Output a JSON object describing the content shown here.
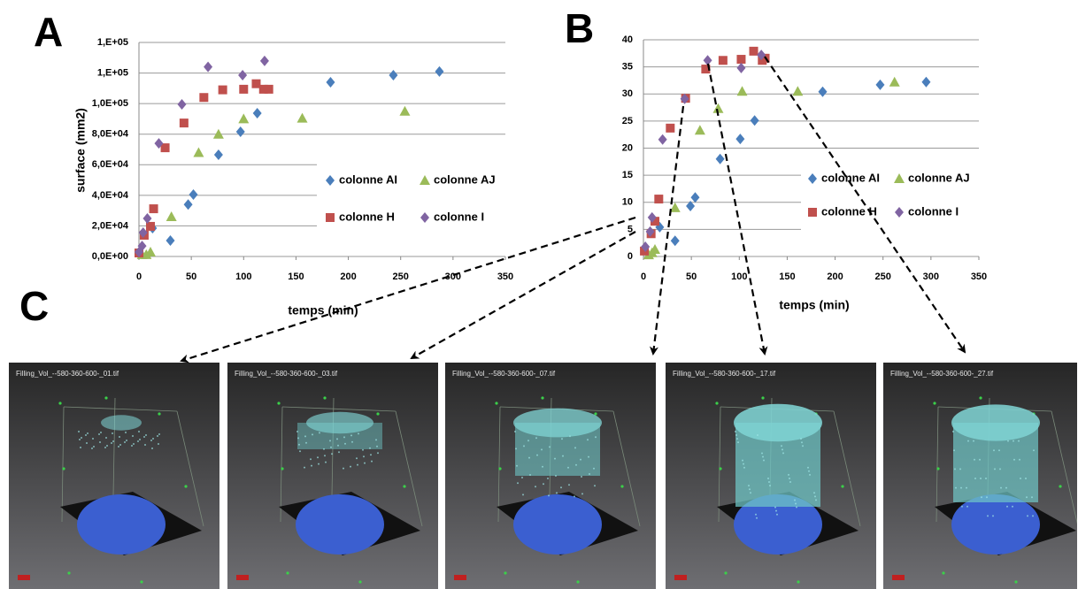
{
  "chart_data": [
    {
      "type": "scatter",
      "panel_label": "A",
      "ylabel": "surface (mm2)",
      "xlabel": "temps (min)",
      "xlim": [
        0,
        350
      ],
      "xticks": [
        0,
        50,
        100,
        150,
        200,
        250,
        300,
        350
      ],
      "ylim": [
        0,
        140000
      ],
      "yticks": [
        {
          "value": 0,
          "label": "0,0E+00"
        },
        {
          "value": 20000,
          "label": "2,0E+04"
        },
        {
          "value": 40000,
          "label": "4,0E+04"
        },
        {
          "value": 60000,
          "label": "6,0E+04"
        },
        {
          "value": 80000,
          "label": "8,0E+04"
        },
        {
          "value": 100000,
          "label": "1,0E+05"
        },
        {
          "value": 120000,
          "label": "1,E+05"
        },
        {
          "value": 140000,
          "label": "1,E+05"
        }
      ],
      "grid": true,
      "series": [
        {
          "name": "colonne AI",
          "color": "#4a7ebb",
          "marker": "diamond",
          "x": [
            13,
            30,
            47,
            52,
            76,
            97,
            113,
            183,
            243,
            287
          ],
          "values": [
            18500,
            10400,
            34000,
            40500,
            66500,
            81600,
            93700,
            114000,
            118600,
            121000
          ]
        },
        {
          "name": "colonne AJ",
          "color": "#9bbb59",
          "marker": "triangle",
          "x": [
            3,
            7,
            11,
            31,
            57,
            76,
            100,
            156,
            254
          ],
          "values": [
            1200,
            1200,
            2900,
            26000,
            68000,
            80000,
            90000,
            90500,
            95000
          ]
        },
        {
          "name": "colonne H",
          "color": "#c0504d",
          "marker": "square",
          "x": [
            0,
            5,
            11,
            14,
            25,
            43,
            62,
            80,
            100,
            112,
            119,
            124
          ],
          "values": [
            2300,
            13900,
            19700,
            31200,
            71100,
            87300,
            104000,
            109000,
            109400,
            113000,
            109400,
            109400
          ]
        },
        {
          "name": "colonne I",
          "color": "#8064a2",
          "marker": "diamond",
          "x": [
            0,
            3,
            4,
            8,
            19,
            41,
            66,
            99,
            120
          ],
          "values": [
            2900,
            6900,
            15600,
            24900,
            74000,
            99500,
            124000,
            118600,
            127900
          ]
        }
      ]
    },
    {
      "type": "scatter",
      "panel_label": "B",
      "xlabel": "temps (min)",
      "xlim": [
        0,
        350
      ],
      "xticks": [
        0,
        50,
        100,
        150,
        200,
        250,
        300,
        350
      ],
      "ylim": [
        0,
        40
      ],
      "yticks": [
        0,
        5,
        10,
        15,
        20,
        25,
        30,
        35,
        40
      ],
      "grid": true,
      "series": [
        {
          "name": "colonne AI",
          "color": "#4a7ebb",
          "marker": "diamond",
          "x": [
            17,
            33,
            49,
            54,
            80,
            101,
            116,
            187,
            247,
            295
          ],
          "values": [
            5.4,
            2.9,
            9.3,
            10.9,
            18,
            21.7,
            25.1,
            30.4,
            31.7,
            32.2
          ]
        },
        {
          "name": "colonne AJ",
          "color": "#9bbb59",
          "marker": "triangle",
          "x": [
            5.5,
            9,
            12,
            33,
            59,
            78,
            103,
            161,
            262
          ],
          "values": [
            0.3,
            0.7,
            1.3,
            9,
            23.3,
            27.3,
            30.5,
            30.5,
            32.2
          ]
        },
        {
          "name": "colonne H",
          "color": "#c0504d",
          "marker": "square",
          "x": [
            1,
            8,
            12,
            16,
            28,
            44,
            65,
            83,
            102,
            115,
            124,
            127
          ],
          "values": [
            1,
            4.2,
            6.5,
            10.6,
            23.7,
            29.2,
            34.6,
            36.2,
            36.4,
            37.9,
            36.2,
            36.6
          ]
        },
        {
          "name": "colonne I",
          "color": "#8064a2",
          "marker": "diamond",
          "x": [
            2,
            7,
            9,
            20,
            43,
            67,
            102,
            123
          ],
          "values": [
            1.8,
            4.6,
            7.2,
            21.6,
            29.1,
            36.2,
            34.8,
            37.2
          ]
        }
      ]
    }
  ],
  "images": {
    "panel_label": "C",
    "panels": [
      {
        "caption": "Filling_Vol_--580-360-600-_01.tif"
      },
      {
        "caption": "Filling_Vol_--580-360-600-_03.tif"
      },
      {
        "caption": "Filling_Vol_--580-360-600-_07.tif"
      },
      {
        "caption": "Filling_Vol_--580-360-600-_17.tif"
      },
      {
        "caption": "Filling_Vol_--580-360-600-_27.tif"
      }
    ]
  }
}
